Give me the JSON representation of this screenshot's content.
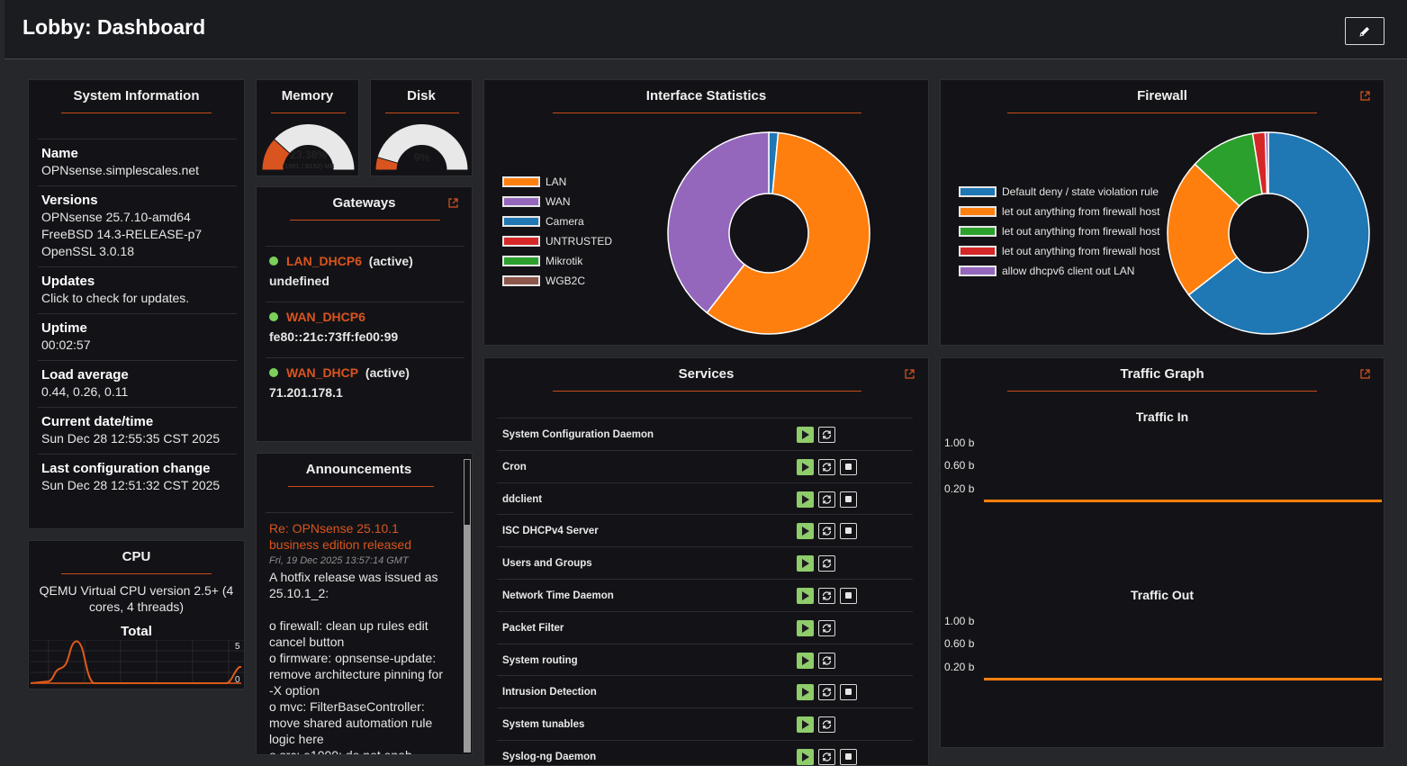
{
  "header": {
    "title": "Lobby: Dashboard"
  },
  "system_info": {
    "title": "System Information",
    "name_label": "Name",
    "name_value": "OPNsense.simplescales.net",
    "versions_label": "Versions",
    "versions": [
      "OPNsense 25.7.10-amd64",
      "FreeBSD 14.3-RELEASE-p7",
      "OpenSSL 3.0.18"
    ],
    "updates_label": "Updates",
    "updates_link": "Click to check for updates.",
    "uptime_label": "Uptime",
    "uptime_value": "00:02:57",
    "load_label": "Load average",
    "load_value": "0.44, 0.26, 0.11",
    "datetime_label": "Current date/time",
    "datetime_value": "Sun Dec 28 12:55:35 CST 2025",
    "lastconfig_label": "Last configuration change",
    "lastconfig_value": "Sun Dec 28 12:51:32 CST 2025"
  },
  "cpu": {
    "title": "CPU",
    "model": "QEMU Virtual CPU version 2.5+ (4 cores, 4 threads)",
    "total_label": "Total",
    "y_max": "5",
    "y_min": "0"
  },
  "memory": {
    "title": "Memory",
    "percent": "23.38%",
    "detail": "(1901 / 8132) MB",
    "fraction": 0.2338
  },
  "disk": {
    "title": "Disk",
    "percent": "9%",
    "fraction": 0.09
  },
  "gateways": {
    "title": "Gateways",
    "items": [
      {
        "name": "LAN_DHCP6",
        "status": "(active)",
        "address": "undefined"
      },
      {
        "name": "WAN_DHCP6",
        "status": "",
        "address": "fe80::21c:73ff:fe00:99"
      },
      {
        "name": "WAN_DHCP",
        "status": "(active)",
        "address": "71.201.178.1"
      }
    ]
  },
  "announcements": {
    "title": "Announcements",
    "headline": "Re: OPNsense 25.10.1 business edition released",
    "date": "Fri, 19 Dec 2025 13:57:14 GMT",
    "body_intro": "A hotfix release was issued as 25.10.1_2:",
    "body_items": [
      "o firewall: clean up rules edit cancel button",
      "o firmware: opnsense-update: remove architecture pinning for -X option",
      "o mvc: FilterBaseController: move shared automation rule logic here",
      "o src: e1000: do not enab"
    ]
  },
  "interface_stats": {
    "title": "Interface Statistics",
    "legend": [
      "LAN",
      "WAN",
      "Camera",
      "UNTRUSTED",
      "Mikrotik",
      "WGB2C"
    ],
    "colors": [
      "#ff7f0e",
      "#9467bd",
      "#1f77b4",
      "#d62728",
      "#2ca02c",
      "#8c564b"
    ]
  },
  "firewall": {
    "title": "Firewall",
    "legend": [
      "Default deny / state violation rule",
      "let out anything from firewall host",
      "let out anything from firewall host",
      "let out anything from firewall host",
      "allow dhcpv6 client out LAN"
    ],
    "colors": [
      "#1f77b4",
      "#ff7f0e",
      "#2ca02c",
      "#d62728",
      "#9467bd"
    ]
  },
  "chart_data": [
    {
      "type": "pie",
      "title": "Interface Statistics",
      "categories": [
        "LAN",
        "WAN",
        "Camera",
        "UNTRUSTED",
        "Mikrotik",
        "WGB2C"
      ],
      "values": [
        59,
        39.5,
        1.5,
        0,
        0,
        0
      ]
    },
    {
      "type": "pie",
      "title": "Firewall",
      "categories": [
        "Default deny / state violation rule",
        "let out anything from firewall host",
        "let out anything from firewall host",
        "let out anything from firewall host",
        "allow dhcpv6 client out LAN"
      ],
      "values": [
        64.5,
        22.5,
        10.5,
        2.0,
        0.5
      ]
    },
    {
      "type": "line",
      "title": "Traffic In",
      "yticks": [
        "1.00 b",
        "0.60 b",
        "0.20 b"
      ],
      "series": [
        {
          "name": "Traffic In",
          "values": [
            0,
            0,
            0,
            0,
            0,
            0,
            0,
            0
          ]
        }
      ]
    },
    {
      "type": "line",
      "title": "Traffic Out",
      "yticks": [
        "1.00 b",
        "0.60 b",
        "0.20 b"
      ],
      "series": [
        {
          "name": "Traffic Out",
          "values": [
            0,
            0,
            0,
            0,
            0,
            0,
            0,
            0
          ]
        }
      ]
    }
  ],
  "services": {
    "title": "Services",
    "items": [
      {
        "name": "System Configuration Daemon",
        "stop": false
      },
      {
        "name": "Cron",
        "stop": true
      },
      {
        "name": "ddclient",
        "stop": true
      },
      {
        "name": "ISC DHCPv4 Server",
        "stop": true
      },
      {
        "name": "Users and Groups",
        "stop": false
      },
      {
        "name": "Network Time Daemon",
        "stop": true
      },
      {
        "name": "Packet Filter",
        "stop": false
      },
      {
        "name": "System routing",
        "stop": false
      },
      {
        "name": "Intrusion Detection",
        "stop": true
      },
      {
        "name": "System tunables",
        "stop": false
      },
      {
        "name": "Syslog-ng Daemon",
        "stop": true
      }
    ]
  },
  "traffic_graph": {
    "title": "Traffic Graph",
    "in_title": "Traffic In",
    "out_title": "Traffic Out",
    "yticks": [
      "1.00 b",
      "0.60 b",
      "0.20 b"
    ]
  }
}
